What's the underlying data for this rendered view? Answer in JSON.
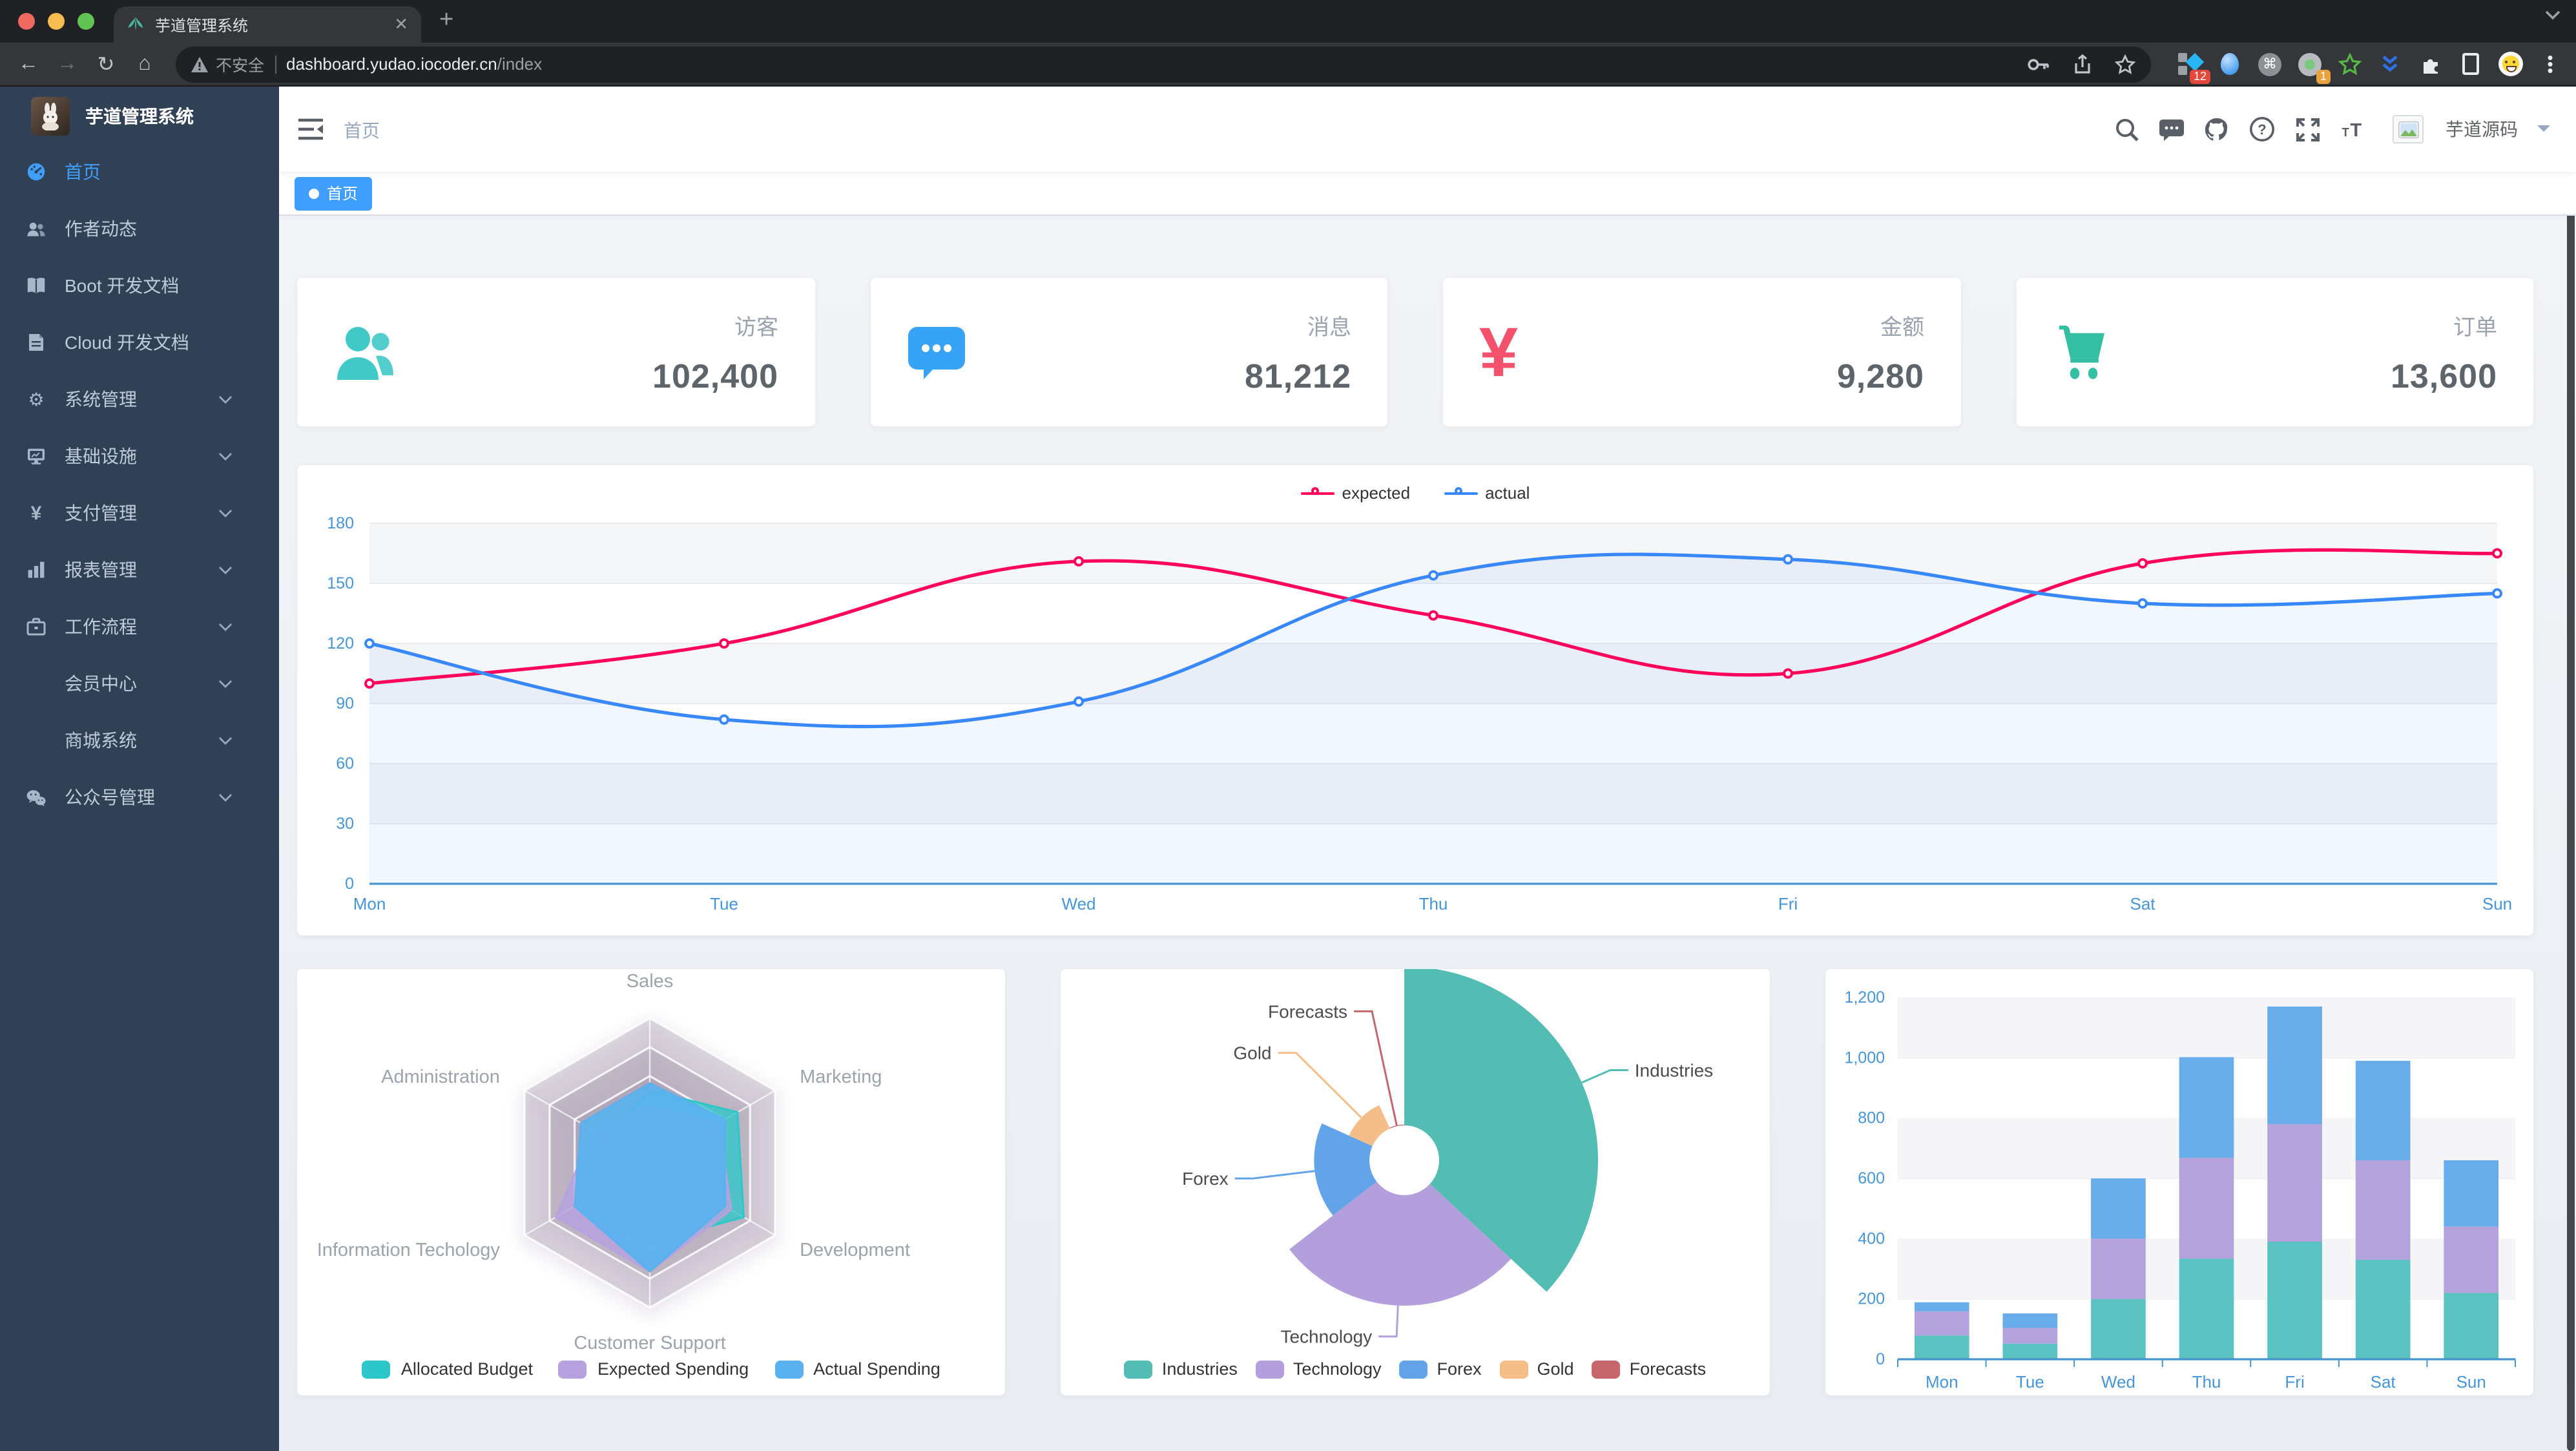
{
  "browser": {
    "tab_title": "芋道管理系统",
    "new_tab_label": "+",
    "security_label": "不安全",
    "url_host": "dashboard.yudao.iocoder.cn",
    "url_path": "/index",
    "ext_badge_tag": "12",
    "ext_badge_record": "1"
  },
  "sidebar": {
    "title": "芋道管理系统",
    "items": [
      {
        "label": "首页",
        "active": true
      },
      {
        "label": "作者动态"
      },
      {
        "label": "Boot 开发文档"
      },
      {
        "label": "Cloud 开发文档"
      },
      {
        "label": "系统管理",
        "expandable": true
      },
      {
        "label": "基础设施",
        "expandable": true
      },
      {
        "label": "支付管理",
        "expandable": true
      },
      {
        "label": "报表管理",
        "expandable": true
      },
      {
        "label": "工作流程",
        "expandable": true
      },
      {
        "label": "会员中心",
        "expandable": true
      },
      {
        "label": "商城系统",
        "expandable": true
      },
      {
        "label": "公众号管理",
        "expandable": true
      }
    ]
  },
  "navbar": {
    "breadcrumb": "首页",
    "username": "芋道源码"
  },
  "tags": {
    "active_tag": "首页"
  },
  "stats": [
    {
      "label": "访客",
      "value": "102,400",
      "color": "#40c9c6"
    },
    {
      "label": "消息",
      "value": "81,212",
      "color": "#36a3f7"
    },
    {
      "label": "金额",
      "value": "9,280",
      "color": "#f4516c"
    },
    {
      "label": "订单",
      "value": "13,600",
      "color": "#34bfa3"
    }
  ],
  "chart_data": [
    {
      "type": "line",
      "x": [
        "Mon",
        "Tue",
        "Wed",
        "Thu",
        "Fri",
        "Sat",
        "Sun"
      ],
      "series": [
        {
          "name": "expected",
          "color": "#FF005A",
          "values": [
            100,
            120,
            161,
            134,
            105,
            160,
            165
          ]
        },
        {
          "name": "actual",
          "color": "#3888fa",
          "values": [
            120,
            82,
            91,
            154,
            162,
            140,
            145
          ],
          "area": true
        }
      ],
      "ylim": [
        0,
        180
      ],
      "yticks": [
        0,
        30,
        60,
        90,
        120,
        150,
        180
      ],
      "axis_color": "#4695d6",
      "legend_position": "top",
      "grid": true
    },
    {
      "type": "radar",
      "indicators": [
        {
          "name": "Sales",
          "max": 10000
        },
        {
          "name": "Administration",
          "max": 20000
        },
        {
          "name": "Information Techology",
          "max": 20000
        },
        {
          "name": "Customer Support",
          "max": 20000
        },
        {
          "name": "Development",
          "max": 20000
        },
        {
          "name": "Marketing",
          "max": 20000
        }
      ],
      "series": [
        {
          "name": "Allocated Budget",
          "color": "#2ec7c9",
          "values": [
            5000,
            7000,
            12000,
            11000,
            15000,
            14000
          ]
        },
        {
          "name": "Expected Spending",
          "color": "#b6a2de",
          "values": [
            4000,
            9000,
            15000,
            15000,
            13000,
            11000
          ]
        },
        {
          "name": "Actual Spending",
          "color": "#5ab1ef",
          "values": [
            5500,
            11000,
            12000,
            15000,
            12000,
            12000
          ]
        }
      ],
      "legend_position": "bottom"
    },
    {
      "type": "pie",
      "rose": "radius",
      "items": [
        {
          "name": "Industries",
          "value": 320,
          "color": "#53bdb3"
        },
        {
          "name": "Technology",
          "value": 240,
          "color": "#b29fdb"
        },
        {
          "name": "Forex",
          "value": 149,
          "color": "#63a4e9"
        },
        {
          "name": "Gold",
          "value": 100,
          "color": "#f5bd87"
        },
        {
          "name": "Forecasts",
          "value": 59,
          "color": "#c4666b"
        }
      ],
      "legend_position": "bottom"
    },
    {
      "type": "bar",
      "stacked": true,
      "categories": [
        "Mon",
        "Tue",
        "Wed",
        "Thu",
        "Fri",
        "Sat",
        "Sun"
      ],
      "series": [
        {
          "color": "#5bc2c1",
          "values": [
            79,
            52,
            200,
            334,
            390,
            330,
            220
          ]
        },
        {
          "color": "#b4a2dd",
          "values": [
            80,
            52,
            200,
            334,
            390,
            330,
            220
          ]
        },
        {
          "color": "#68ace9",
          "values": [
            30,
            48,
            200,
            334,
            390,
            330,
            220
          ]
        }
      ],
      "ylim": [
        0,
        1200
      ],
      "yticks": [
        0,
        200,
        400,
        600,
        800,
        1000,
        1200
      ],
      "axis_color": "#4695d6",
      "grid": true
    }
  ]
}
